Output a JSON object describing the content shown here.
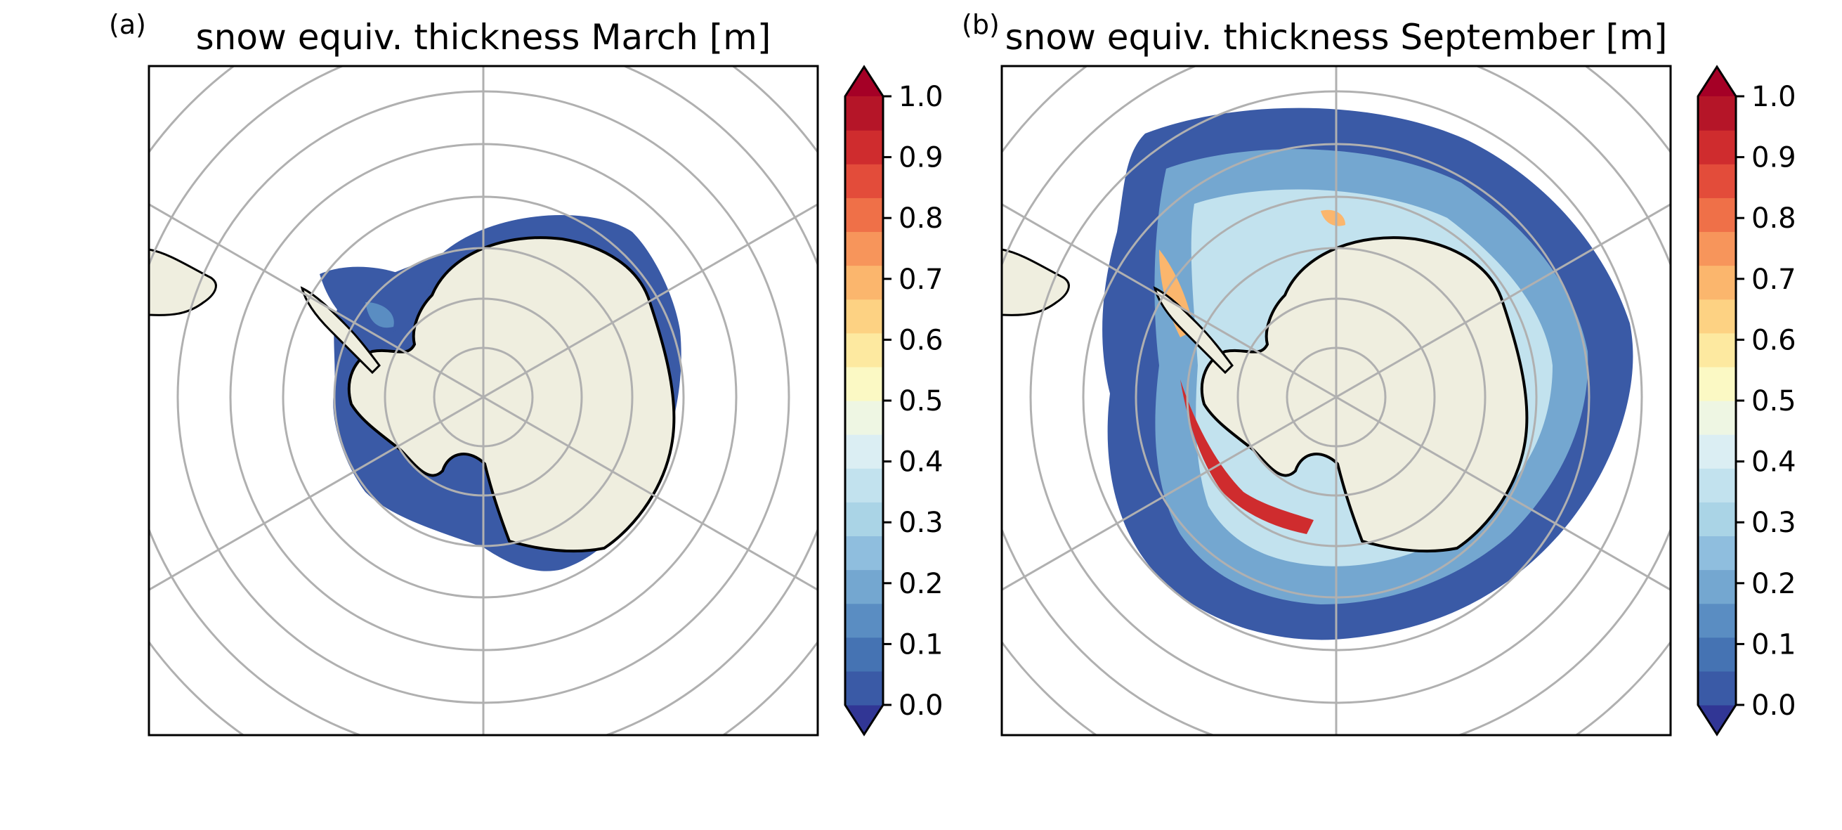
{
  "figure": {
    "panels": [
      {
        "label": "(a)",
        "title": "snow equiv. thickness March [m]",
        "month": "March"
      },
      {
        "label": "(b)",
        "title": "snow equiv. thickness September [m]",
        "month": "September"
      }
    ],
    "colorbar": {
      "ticks": [
        "0.0",
        "0.1",
        "0.2",
        "0.3",
        "0.4",
        "0.5",
        "0.6",
        "0.7",
        "0.8",
        "0.9",
        "1.0"
      ],
      "colors": [
        "#3a5aa6",
        "#4573b3",
        "#5a8dc2",
        "#74a7d0",
        "#8fbede",
        "#aad4e6",
        "#c2e2ee",
        "#dbeef3",
        "#eef6e3",
        "#fbf9c4",
        "#fde9a0",
        "#fdd283",
        "#fbb66d",
        "#f7955b",
        "#ef7048",
        "#e34c3a",
        "#cf2c2e",
        "#b51528"
      ],
      "under_color": "#313695",
      "over_color": "#a50026",
      "extend": "both"
    },
    "colors": {
      "land": "#efeedf",
      "coastline": "#000000",
      "graticule": "#b0b0b0",
      "frame": "#000000"
    }
  }
}
